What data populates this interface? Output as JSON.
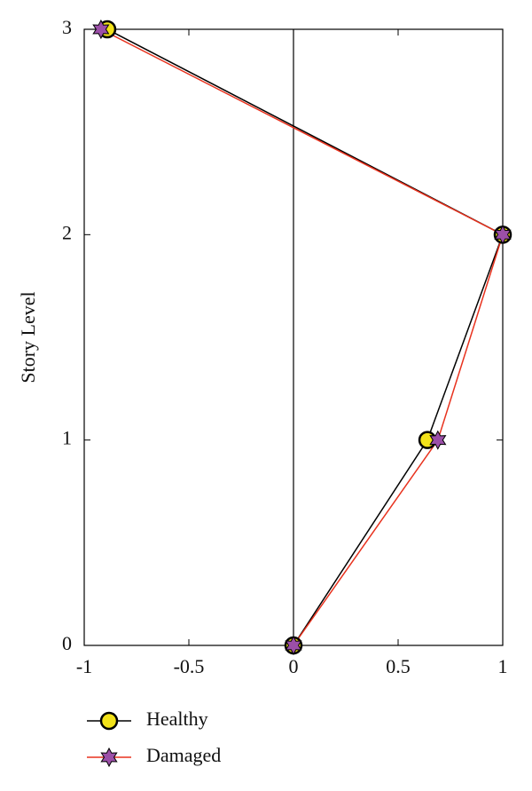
{
  "chart_data": {
    "type": "line",
    "ylabel": "Story Level",
    "xlim": [
      -1,
      1
    ],
    "xticks": [
      -1,
      -0.5,
      0,
      0.5,
      1
    ],
    "ylim": [
      0,
      3
    ],
    "yticks": [
      0,
      1,
      2,
      3
    ],
    "zero_line": true,
    "legend": "bottom-left",
    "series": [
      {
        "name": "Healthy",
        "color": "#000000",
        "marker": "circle",
        "marker_color": "#f2e21a",
        "x": [
          0,
          0.64,
          1,
          -0.89
        ],
        "values": [
          0,
          1,
          2,
          3
        ]
      },
      {
        "name": "Damaged",
        "color": "#e8321e",
        "marker": "star",
        "marker_color": "#9b4fa8",
        "x": [
          0,
          0.69,
          1,
          -0.92
        ],
        "values": [
          0,
          1,
          2,
          3
        ]
      }
    ]
  }
}
